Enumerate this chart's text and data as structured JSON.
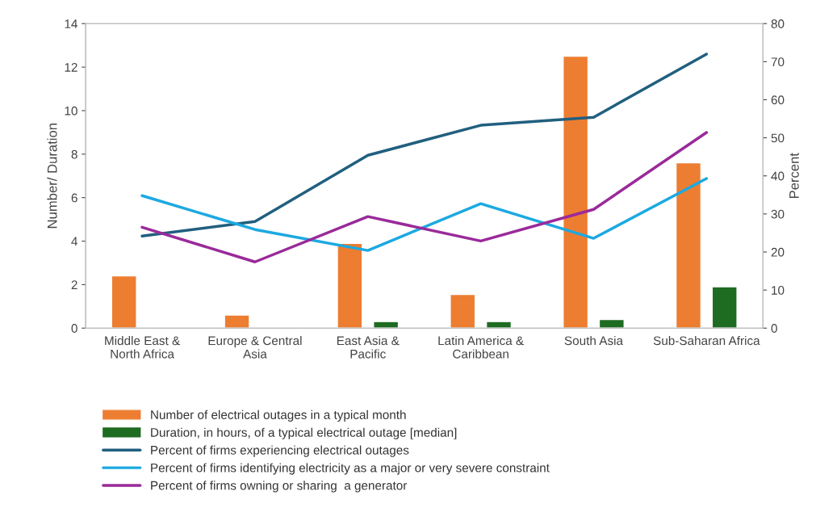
{
  "chart_data": {
    "type": "bar",
    "ylabel": "Number/ Duration",
    "y2label": "Percent",
    "categories": [
      "Middle East & North Africa",
      "Europe & Central Asia",
      "East Asia & Pacific",
      "Latin America & Caribbean",
      "South Asia",
      "Sub-Saharan Africa"
    ],
    "ylim": [
      0,
      14
    ],
    "yticks": [
      0,
      2,
      4,
      6,
      8,
      10,
      12,
      14
    ],
    "y2lim": [
      0,
      80
    ],
    "y2ticks": [
      0,
      10,
      20,
      30,
      40,
      50,
      60,
      70,
      80
    ],
    "grid": false,
    "legend": "bottom",
    "series": [
      {
        "name": "Number of electrical outages in a typical month",
        "color": "#ed7d31",
        "values": [
          2.4,
          0.6,
          3.9,
          1.55,
          12.5,
          7.6
        ]
      },
      {
        "name": "Duration, in hours, of a typical electrical outage [median]",
        "color": "#1e6b22",
        "values": [
          null,
          null,
          0.3,
          0.3,
          0.4,
          1.9
        ]
      },
      {
        "name": "Percent of firms experiencing electrical outages",
        "type": "line",
        "axis": "y2",
        "color": "#215f7f",
        "values": [
          24.2,
          28,
          45.4,
          53.3,
          55.4,
          72
        ]
      },
      {
        "name": "Percent of firms identifying electricity as a major or very severe constraint",
        "type": "line",
        "axis": "y2",
        "color": "#1ca9e1",
        "values": [
          34.8,
          25.9,
          20.4,
          32.7,
          23.6,
          39.3
        ]
      },
      {
        "name": "Percent of firms owning or sharing  a generator",
        "type": "line",
        "axis": "y2",
        "color": "#9a2a9a",
        "values": [
          26.5,
          17.4,
          29.3,
          22.9,
          31.2,
          51.4
        ]
      }
    ]
  }
}
